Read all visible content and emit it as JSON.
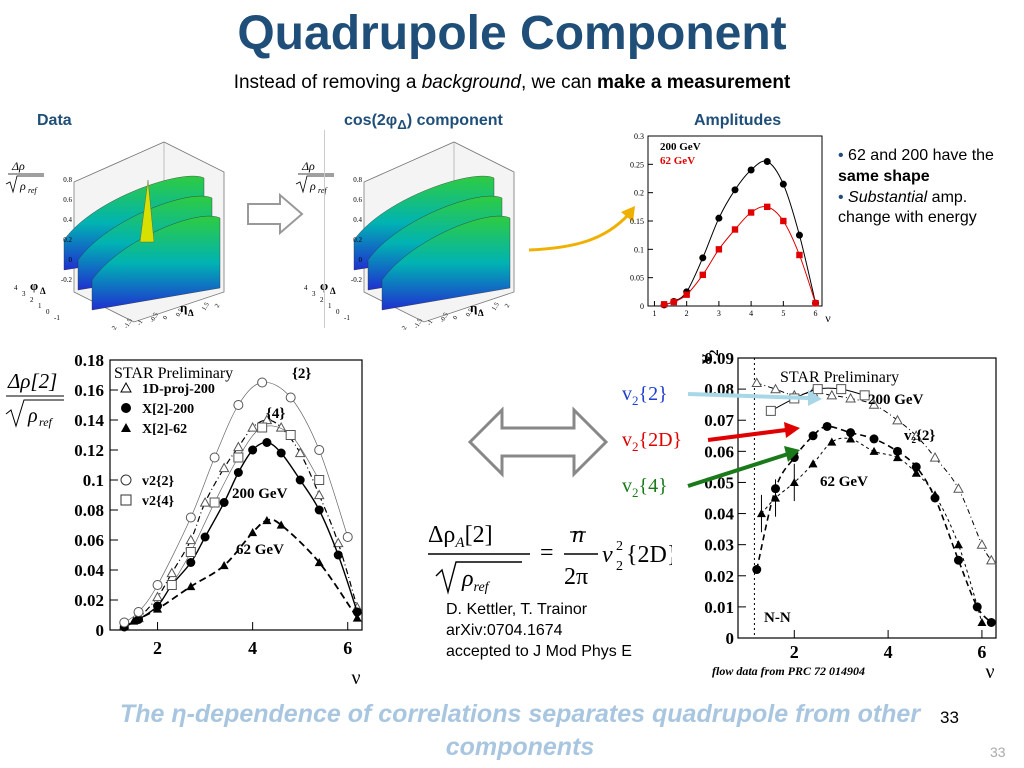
{
  "title": "Quadrupole Component",
  "subtitle": {
    "pre": "Instead of removing a ",
    "em": "background",
    "mid": ", we can ",
    "strong": "make a measurement"
  },
  "headers": {
    "data": "Data",
    "cos": "cos(2φ",
    "cos_sub": "Δ",
    "cos_post": ") component",
    "amplitudes": "Amplitudes"
  },
  "surface": {
    "zlabel_num": "Δρ",
    "zlabel_den": "ρ",
    "zlabel_den_sub": "ref",
    "ylabel": "φ",
    "ylabel_sub": "Δ",
    "xlabel": "η",
    "xlabel_sub": "Δ",
    "zticks": [
      "0.8",
      "0.6",
      "0.4",
      "0.2",
      "0",
      "-0.2"
    ],
    "yticks": [
      "4",
      "3",
      "2",
      "1",
      "0",
      "-1"
    ],
    "xticks": [
      "-2",
      "-1.5",
      "-1",
      "-0.5",
      "0",
      "0.5",
      "1",
      "1.5",
      "2"
    ]
  },
  "bullets": [
    {
      "pre": "62 and 200 have the ",
      "strong": "same shape"
    },
    {
      "em": "Substantial",
      "post": " amp. change with energy"
    }
  ],
  "credit": {
    "line1": "D. Kettler, T. Trainor",
    "line2": "arXiv:0704.1674",
    "line3": "accepted to J Mod Phys E"
  },
  "equation": {
    "lhs_num": "Δρ",
    "lhs_sub": "A",
    "lhs_bracket": "[2]",
    "lhs_den": "ρ",
    "lhs_den_sub": "ref",
    "eq": "=",
    "rhs_num": "n",
    "rhs_den": "2π",
    "rhs_v": "v",
    "rhs_sup": "2",
    "rhs_sub": "2",
    "rhs_arg": "{2D}"
  },
  "footer": {
    "text": "The η-dependence of correlations separates quadrupole from other components",
    "slide_number": "33",
    "slide_number_corner": "33"
  },
  "colors": {
    "title": "#1f4e79",
    "footer": "#a9c6e0",
    "red": "#e00000",
    "green": "#1a7a1a",
    "blue": "#1f3fcf",
    "arrow_light": "#a8d8e8",
    "arrow_gold": "#f0b000"
  },
  "chart_data": [
    {
      "type": "line",
      "title": "Amplitudes",
      "xlabel": "ν",
      "xlim": [
        0.8,
        6.2
      ],
      "ylim": [
        0,
        0.3
      ],
      "yticks": [
        0,
        0.05,
        0.1,
        0.15,
        0.2,
        0.25,
        0.3
      ],
      "xticks": [
        1,
        2,
        3,
        4,
        5,
        6
      ],
      "legend": [
        "200 GeV",
        "62 GeV"
      ],
      "series": [
        {
          "name": "200 GeV",
          "color": "#000000",
          "x": [
            1.3,
            1.6,
            2.0,
            2.5,
            3.0,
            3.5,
            4.0,
            4.5,
            5.0,
            5.5,
            6.0
          ],
          "y": [
            0.002,
            0.008,
            0.025,
            0.085,
            0.155,
            0.205,
            0.24,
            0.255,
            0.215,
            0.125,
            0.005
          ]
        },
        {
          "name": "62 GeV",
          "color": "#e00000",
          "x": [
            1.3,
            1.6,
            2.0,
            2.5,
            3.0,
            3.5,
            4.0,
            4.5,
            5.0,
            5.5,
            6.0
          ],
          "y": [
            0.003,
            0.007,
            0.02,
            0.055,
            0.1,
            0.135,
            0.165,
            0.175,
            0.15,
            0.09,
            0.005
          ]
        }
      ]
    },
    {
      "type": "scatter",
      "title": "",
      "yaxis_label": "Δρ[2] / √ρ_ref",
      "xlabel": "ν",
      "xlim": [
        1.0,
        6.3
      ],
      "ylim": [
        0,
        0.18
      ],
      "yticks": [
        "0",
        "0.02",
        "0.04",
        "0.06",
        "0.08",
        "0.1",
        "0.12",
        "0.14",
        "0.16",
        "0.18"
      ],
      "xticks": [
        "2",
        "4",
        "6"
      ],
      "annotations": [
        "STAR Preliminary",
        "{2}",
        "{4}",
        "200 GeV",
        "62 GeV"
      ],
      "legend": [
        "1D-proj-200",
        "X[2]-200",
        "X[2]-62",
        "v2{2}",
        "v2{4}"
      ],
      "series": [
        {
          "name": "1D-proj-200",
          "marker": "triangle-open",
          "x": [
            1.3,
            1.6,
            2.0,
            2.3,
            2.7,
            3.0,
            3.4,
            3.7,
            4.0,
            4.3,
            4.6,
            5.0,
            5.4,
            5.8,
            6.2
          ],
          "y": [
            0.003,
            0.008,
            0.022,
            0.038,
            0.06,
            0.085,
            0.108,
            0.122,
            0.135,
            0.14,
            0.135,
            0.118,
            0.09,
            0.058,
            0.015
          ]
        },
        {
          "name": "X[2]-200",
          "marker": "circle-filled",
          "x": [
            1.3,
            1.6,
            2.0,
            2.3,
            2.7,
            3.0,
            3.4,
            3.7,
            4.0,
            4.3,
            4.6,
            5.0,
            5.4,
            5.8,
            6.2
          ],
          "y": [
            0.002,
            0.007,
            0.016,
            0.03,
            0.045,
            0.062,
            0.085,
            0.105,
            0.12,
            0.125,
            0.118,
            0.1,
            0.08,
            0.05,
            0.012
          ]
        },
        {
          "name": "X[2]-62",
          "marker": "triangle-filled",
          "x": [
            1.5,
            2.0,
            2.7,
            3.4,
            4.0,
            4.3,
            4.6,
            5.4,
            6.2
          ],
          "y": [
            0.006,
            0.014,
            0.029,
            0.043,
            0.065,
            0.073,
            0.07,
            0.045,
            0.008
          ]
        },
        {
          "name": "v2{2}",
          "marker": "circle-open",
          "x": [
            1.3,
            1.6,
            2.0,
            2.7,
            3.2,
            3.7,
            4.2,
            4.8,
            5.4,
            6.0
          ],
          "y": [
            0.005,
            0.012,
            0.03,
            0.075,
            0.115,
            0.15,
            0.165,
            0.155,
            0.12,
            0.062
          ]
        },
        {
          "name": "v2{4}",
          "marker": "square-open",
          "x": [
            2.3,
            2.7,
            3.2,
            3.7,
            4.2,
            4.8,
            5.4
          ],
          "y": [
            0.03,
            0.052,
            0.085,
            0.115,
            0.135,
            0.13,
            0.1
          ]
        }
      ]
    },
    {
      "type": "scatter",
      "title": "",
      "yaxis_label": "v",
      "yaxis_label_sub": "2",
      "xlabel": "ν",
      "xlim": [
        0.8,
        6.3
      ],
      "ylim": [
        0,
        0.09
      ],
      "yticks": [
        "0",
        "0.01",
        "0.02",
        "0.03",
        "0.04",
        "0.05",
        "0.06",
        "0.07",
        "0.08",
        "0.09"
      ],
      "xticks": [
        "2",
        "4",
        "6"
      ],
      "annotations": [
        "STAR Preliminary",
        "200 GeV",
        "62 GeV",
        "v₂{2}",
        "N-N"
      ],
      "note": "flow data from PRC 72 014904",
      "labels": {
        "v22": "v",
        "v22_sub": "2",
        "v22_arg": "{2}",
        "v22d": "v",
        "v22d_sub": "2",
        "v22d_arg": "{2D}",
        "v24": "v",
        "v24_sub": "2",
        "v24_arg": "{4}"
      },
      "series": [
        {
          "name": "v2{2}",
          "marker": "triangle-open",
          "x": [
            1.2,
            1.6,
            2.0,
            2.4,
            2.8,
            3.2,
            3.7,
            4.2,
            4.6,
            5.0,
            5.5,
            6.0,
            6.2
          ],
          "y": [
            0.082,
            0.08,
            0.078,
            0.079,
            0.078,
            0.077,
            0.075,
            0.07,
            0.065,
            0.058,
            0.048,
            0.03,
            0.025
          ]
        },
        {
          "name": "v2{2D}",
          "marker": "circle-filled",
          "x": [
            1.2,
            1.6,
            2.0,
            2.4,
            2.7,
            3.2,
            3.7,
            4.2,
            4.6,
            5.0,
            5.5,
            5.9,
            6.2
          ],
          "y": [
            0.022,
            0.048,
            0.058,
            0.065,
            0.068,
            0.066,
            0.064,
            0.06,
            0.055,
            0.045,
            0.025,
            0.01,
            0.005
          ]
        },
        {
          "name": "v2{4}",
          "marker": "triangle-filled",
          "x": [
            1.3,
            1.6,
            2.0,
            2.4,
            2.8,
            3.2,
            3.7,
            4.2,
            4.6,
            5.0,
            5.5,
            6.0
          ],
          "y": [
            0.04,
            0.045,
            0.05,
            0.056,
            0.063,
            0.064,
            0.06,
            0.058,
            0.053,
            0.046,
            0.03,
            0.005
          ]
        },
        {
          "name": "v2{2}-open",
          "marker": "square-open",
          "x": [
            1.5,
            2.0,
            2.5,
            3.0,
            3.5
          ],
          "y": [
            0.073,
            0.077,
            0.08,
            0.08,
            0.078
          ]
        }
      ]
    }
  ]
}
